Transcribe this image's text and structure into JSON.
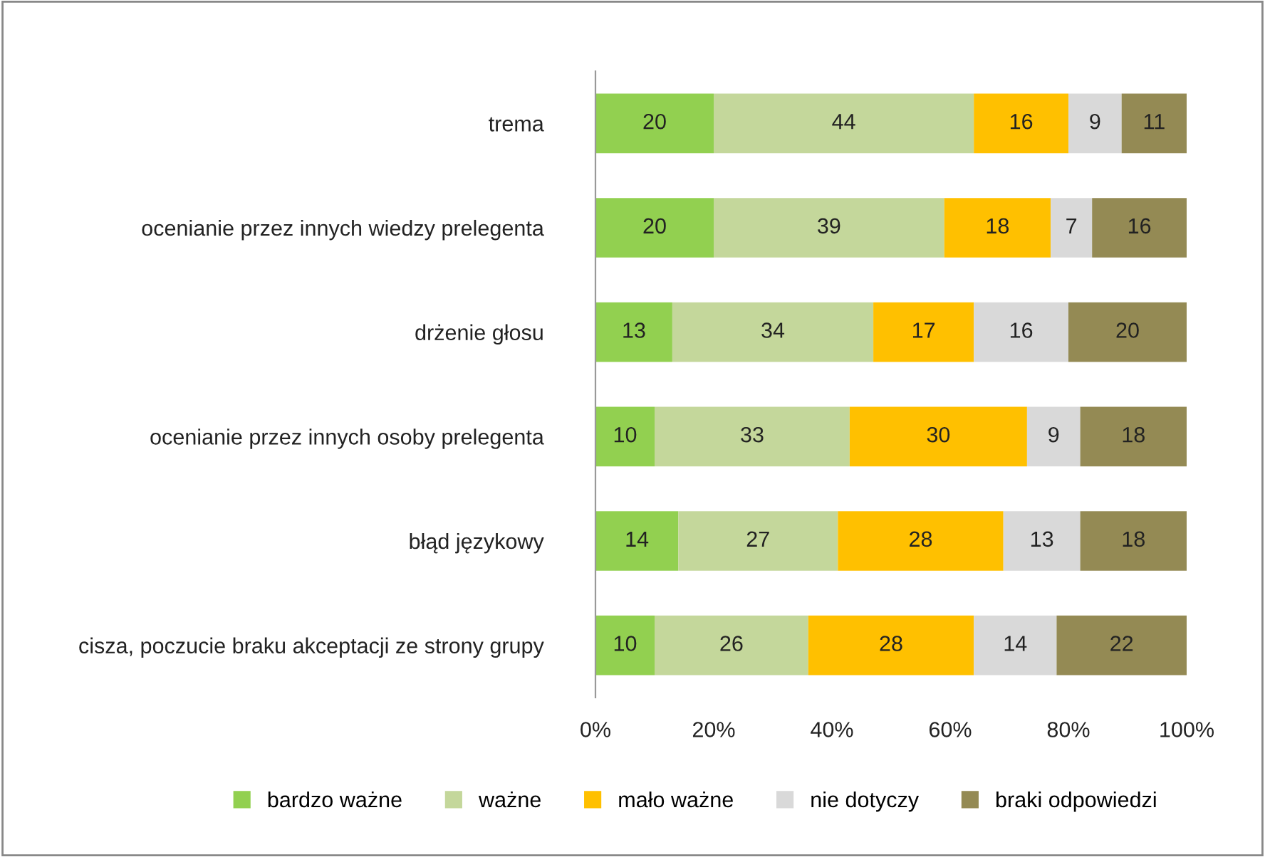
{
  "chart_data": {
    "type": "bar",
    "orientation": "horizontal",
    "stacked": true,
    "data_labels": true,
    "legend": "bottom",
    "grid": false,
    "categories": [
      "trema",
      "ocenianie przez innych wiedzy prelegenta",
      "drżenie głosu",
      "ocenianie przez innych osoby prelegenta",
      "błąd językowy",
      "cisza, poczucie braku akceptacji ze strony grupy"
    ],
    "series": [
      {
        "name": "bardzo ważne",
        "color": "#92d050",
        "values": [
          20,
          20,
          13,
          10,
          14,
          10
        ]
      },
      {
        "name": "ważne",
        "color": "#c4d79b",
        "values": [
          44,
          39,
          34,
          33,
          27,
          26
        ]
      },
      {
        "name": "mało ważne",
        "color": "#ffc000",
        "values": [
          16,
          18,
          17,
          30,
          28,
          28
        ]
      },
      {
        "name": "nie dotyczy",
        "color": "#d9d9d9",
        "values": [
          9,
          7,
          16,
          9,
          13,
          14
        ]
      },
      {
        "name": "braki odpowiedzi",
        "color": "#948a54",
        "values": [
          11,
          16,
          20,
          18,
          18,
          22
        ]
      }
    ],
    "xlim": [
      0,
      100
    ],
    "xticks": [
      {
        "value": 0,
        "label": "0%"
      },
      {
        "value": 20,
        "label": "20%"
      },
      {
        "value": 40,
        "label": "40%"
      },
      {
        "value": 60,
        "label": "60%"
      },
      {
        "value": 80,
        "label": "80%"
      },
      {
        "value": 100,
        "label": "100%"
      }
    ]
  }
}
